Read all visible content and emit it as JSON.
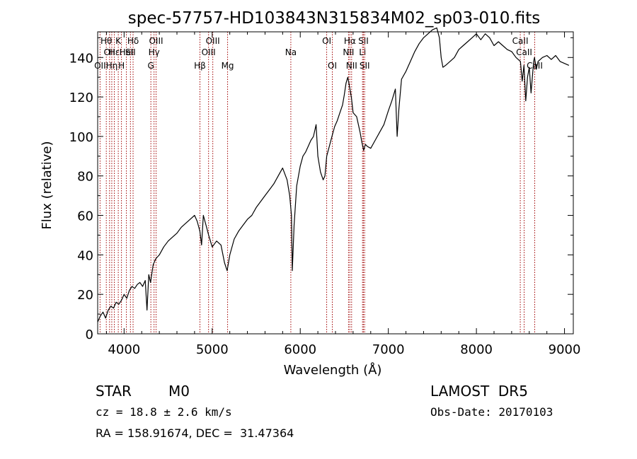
{
  "chart_data": {
    "type": "line",
    "title": "spec-57757-HD103843N315834M02_sp03-010.fits",
    "xlabel": "Wavelength (Å)",
    "ylabel": "Flux (relative)",
    "xlim": [
      3700,
      9100
    ],
    "ylim": [
      0,
      153
    ],
    "x_ticks": [
      4000,
      5000,
      6000,
      7000,
      8000,
      9000
    ],
    "y_ticks": [
      0,
      20,
      40,
      60,
      80,
      100,
      120,
      140
    ],
    "grid": false,
    "line_color": "#000000",
    "marker_color": "#a00000",
    "series": [
      {
        "x": [
          3700,
          3730,
          3760,
          3790,
          3820,
          3850,
          3880,
          3910,
          3940,
          3970,
          4000,
          4030,
          4060,
          4090,
          4120,
          4150,
          4180,
          4210,
          4240,
          4260,
          4280,
          4300,
          4330,
          4360,
          4400,
          4450,
          4500,
          4550,
          4600,
          4650,
          4700,
          4750,
          4800,
          4830,
          4860,
          4880,
          4900,
          4930,
          4960,
          5000,
          5050,
          5100,
          5140,
          5170,
          5200,
          5250,
          5300,
          5350,
          5400,
          5450,
          5500,
          5550,
          5600,
          5650,
          5700,
          5750,
          5800,
          5850,
          5880,
          5900,
          5910,
          5930,
          5960,
          6000,
          6030,
          6060,
          6100,
          6120,
          6150,
          6180,
          6200,
          6230,
          6260,
          6280,
          6300,
          6330,
          6360,
          6390,
          6420,
          6450,
          6480,
          6500,
          6520,
          6540,
          6560,
          6580,
          6600,
          6640,
          6680,
          6700,
          6720,
          6740,
          6760,
          6800,
          6850,
          6900,
          6950,
          7000,
          7040,
          7080,
          7100,
          7120,
          7150,
          7200,
          7250,
          7300,
          7350,
          7400,
          7450,
          7500,
          7550,
          7580,
          7600,
          7620,
          7650,
          7700,
          7750,
          7800,
          7850,
          7900,
          7950,
          8000,
          8050,
          8100,
          8150,
          8200,
          8250,
          8300,
          8350,
          8400,
          8450,
          8500,
          8520,
          8540,
          8560,
          8580,
          8600,
          8620,
          8650,
          8660,
          8680,
          8700,
          8750,
          8800,
          8850,
          8900,
          8950,
          9000,
          9050
        ],
        "y": [
          6,
          9,
          11,
          8,
          12,
          14,
          13,
          16,
          15,
          17,
          20,
          18,
          22,
          24,
          23,
          25,
          26,
          24,
          27,
          12,
          30,
          26,
          35,
          38,
          40,
          44,
          47,
          49,
          51,
          54,
          56,
          58,
          60,
          57,
          52,
          45,
          60,
          55,
          50,
          44,
          47,
          45,
          36,
          32,
          40,
          48,
          52,
          55,
          58,
          60,
          64,
          67,
          70,
          73,
          76,
          80,
          84,
          78,
          70,
          60,
          32,
          55,
          75,
          85,
          90,
          92,
          96,
          98,
          100,
          106,
          90,
          82,
          78,
          80,
          90,
          95,
          100,
          105,
          108,
          112,
          116,
          121,
          127,
          130,
          125,
          120,
          112,
          110,
          102,
          97,
          93,
          96,
          95,
          94,
          98,
          102,
          106,
          113,
          118,
          124,
          100,
          114,
          129,
          133,
          138,
          143,
          147,
          150,
          152,
          154,
          155,
          150,
          140,
          135,
          136,
          138,
          140,
          144,
          146,
          148,
          150,
          152,
          149,
          152,
          150,
          146,
          148,
          146,
          144,
          143,
          140,
          138,
          128,
          136,
          118,
          130,
          135,
          122,
          138,
          140,
          134,
          138,
          140,
          141,
          139,
          141,
          138,
          137,
          136
        ]
      }
    ],
    "line_markers": [
      {
        "x": 3798,
        "label": "Hθ",
        "row": 1
      },
      {
        "x": 3835,
        "label": "OII",
        "row": 2
      },
      {
        "x": 3727,
        "label": "OII",
        "row": 3
      },
      {
        "x": 3889,
        "label": "Hε",
        "row": 2
      },
      {
        "x": 3934,
        "label": "K",
        "row": 1
      },
      {
        "x": 3970,
        "label": "H",
        "row": 3
      },
      {
        "x": 4026,
        "label": "HeI",
        "row": 2
      },
      {
        "x": 4072,
        "label": "SII",
        "row": 2
      },
      {
        "x": 4102,
        "label": "Hδ",
        "row": 1
      },
      {
        "x": 3860,
        "label": "Hη",
        "row": 3
      },
      {
        "x": 4304,
        "label": "G",
        "row": 3
      },
      {
        "x": 4340,
        "label": "Hγ",
        "row": 2
      },
      {
        "x": 4363,
        "label": "OIII",
        "row": 1
      },
      {
        "x": 4861,
        "label": "Hβ",
        "row": 3
      },
      {
        "x": 4959,
        "label": "OIII",
        "row": 2
      },
      {
        "x": 5007,
        "label": "OIII",
        "row": 1
      },
      {
        "x": 5175,
        "label": "Mg",
        "row": 3
      },
      {
        "x": 5893,
        "label": "Na",
        "row": 2
      },
      {
        "x": 6300,
        "label": "OI",
        "row": 1
      },
      {
        "x": 6364,
        "label": "OI",
        "row": 3
      },
      {
        "x": 6548,
        "label": "NII",
        "row": 2
      },
      {
        "x": 6563,
        "label": "Hα",
        "row": 1
      },
      {
        "x": 6583,
        "label": "NII",
        "row": 3
      },
      {
        "x": 6707,
        "label": "Li",
        "row": 2
      },
      {
        "x": 6717,
        "label": "SII",
        "row": 1
      },
      {
        "x": 6731,
        "label": "SII",
        "row": 3
      },
      {
        "x": 8498,
        "label": "CaII",
        "row": 1
      },
      {
        "x": 8542,
        "label": "CaII",
        "row": 2
      },
      {
        "x": 8662,
        "label": "CaII",
        "row": 3
      }
    ]
  },
  "info": {
    "object_class": "STAR",
    "subclass": "M0",
    "survey": "LAMOST  DR5",
    "redshift": "cz = 18.8 ± 2.6 km/s",
    "obs_date": "Obs-Date: 20170103",
    "coords": "RA = 158.91674, DEC =  31.47364"
  }
}
